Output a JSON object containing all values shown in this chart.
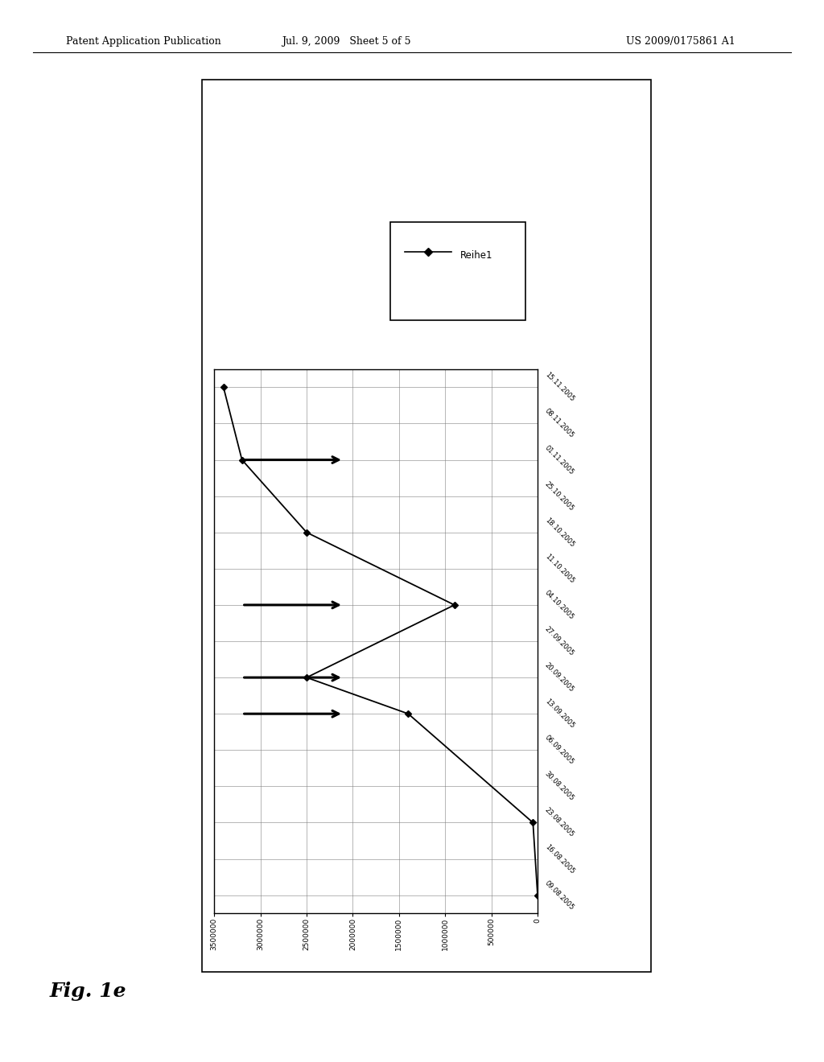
{
  "dates": [
    "09.08.2005",
    "16.08.2005",
    "23.08.2005",
    "30.08.2005",
    "06.09.2005",
    "13.09.2005",
    "20.09.2005",
    "27.09.2005",
    "04.10.2005",
    "11.10.2005",
    "18.10.2005",
    "25.10.2005",
    "01.11.2005",
    "08.11.2005",
    "15.11.2005"
  ],
  "line_points": [
    {
      "date": "09.08.2005",
      "value": 0
    },
    {
      "date": "23.08.2005",
      "value": 50000
    },
    {
      "date": "13.09.2005",
      "value": 1400000
    },
    {
      "date": "20.09.2005",
      "value": 2500000
    },
    {
      "date": "04.10.2005",
      "value": 900000
    },
    {
      "date": "18.10.2005",
      "value": 2500000
    },
    {
      "date": "01.11.2005",
      "value": 3200000
    },
    {
      "date": "15.11.2005",
      "value": 3400000
    }
  ],
  "series_name": "Reihe1",
  "xlim_reversed": [
    3500000,
    0
  ],
  "xticks": [
    3500000,
    3000000,
    2500000,
    2000000,
    1500000,
    1000000,
    500000,
    0
  ],
  "background_color": "#ffffff",
  "line_color": "#000000",
  "arrow_dates": [
    "13.09.2005",
    "20.09.2005",
    "04.10.2005",
    "01.11.2005"
  ],
  "fig_caption": "Fig. 1e",
  "header_left": "Patent Application Publication",
  "header_mid": "Jul. 9, 2009   Sheet 5 of 5",
  "header_right": "US 2009/0175861 A1"
}
